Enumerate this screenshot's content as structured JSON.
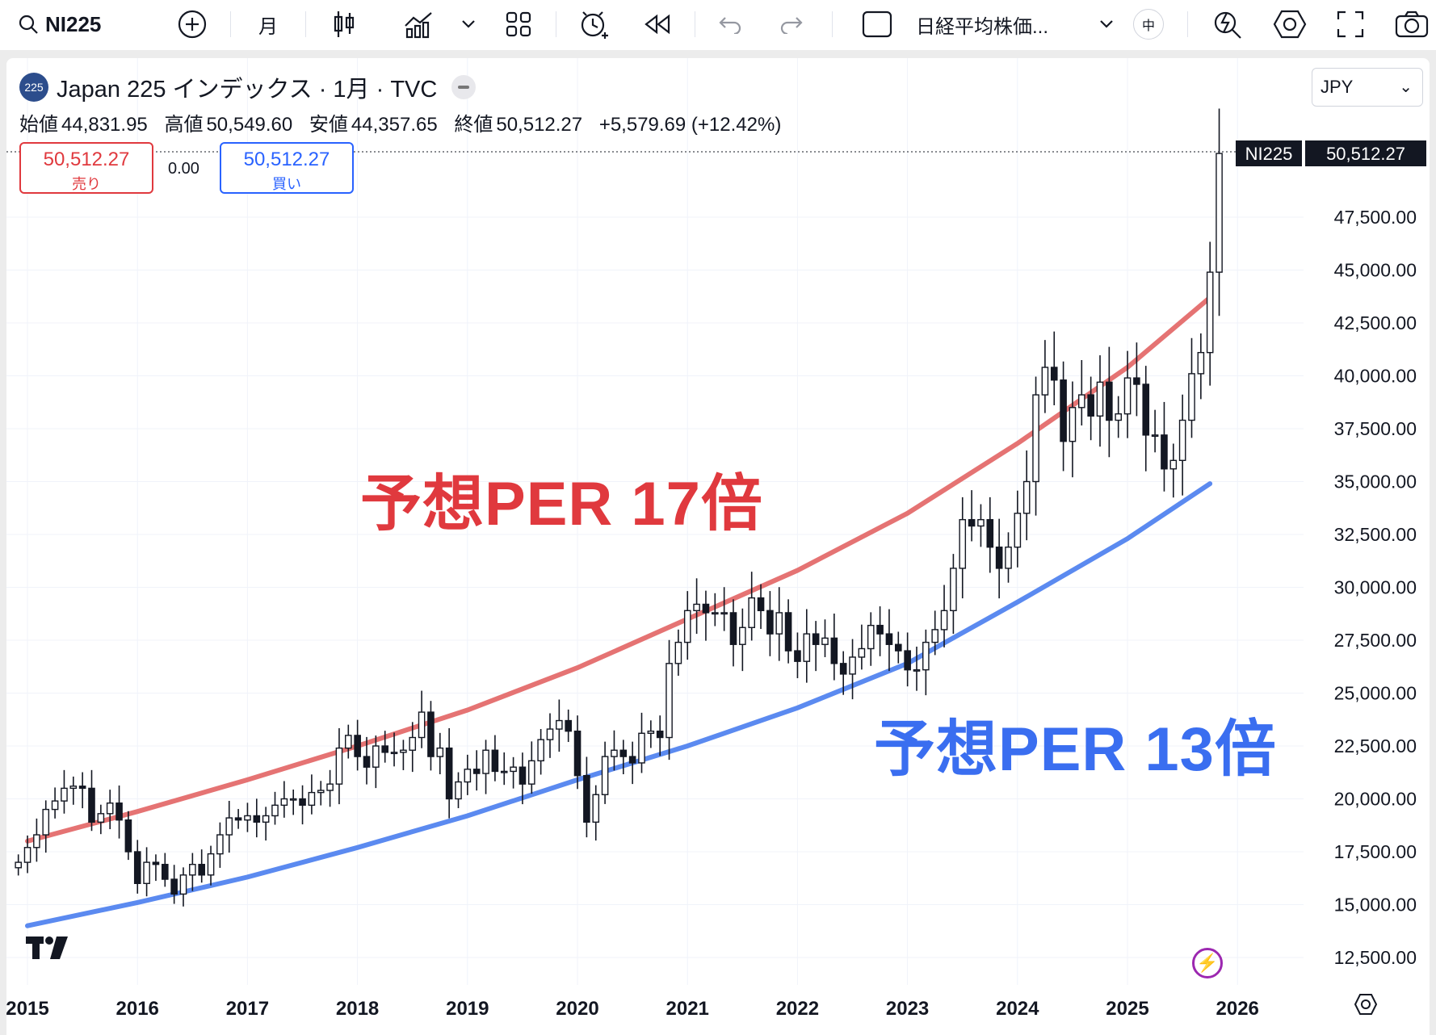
{
  "toolbar": {
    "symbol": "NI225",
    "interval": "月",
    "indicator_name": "日経平均株価...",
    "lang": "中"
  },
  "legend": {
    "badge": "225",
    "title": "Japan 225 インデックス · 1月 · TVC",
    "open_label": "始値",
    "open": "44,831.95",
    "high_label": "高値",
    "high": "50,549.60",
    "low_label": "安値",
    "low": "44,357.65",
    "close_label": "終値",
    "close": "50,512.27",
    "change": "+5,579.69 (+12.42%)"
  },
  "trade": {
    "sell_price": "50,512.27",
    "sell_label": "売り",
    "spread": "0.00",
    "buy_price": "50,512.27",
    "buy_label": "買い"
  },
  "currency": "JPY",
  "price_tag": {
    "symbol": "NI225",
    "price": "50,512.27"
  },
  "annotations": {
    "per17": "予想PER 17倍",
    "per13": "予想PER 13倍"
  },
  "colors": {
    "per17": "#e57373",
    "per13": "#5b8af0",
    "per17_text": "#e0393e",
    "per13_text": "#3a6ef0",
    "sell": "#e0393e",
    "buy": "#2962ff"
  },
  "chart_data": {
    "type": "candlestick",
    "y_ticks": [
      "12,500.00",
      "15,000.00",
      "17,500.00",
      "20,000.00",
      "22,500.00",
      "25,000.00",
      "27,500.00",
      "30,000.00",
      "32,500.00",
      "35,000.00",
      "37,500.00",
      "40,000.00",
      "42,500.00",
      "45,000.00",
      "47,500.00"
    ],
    "x_ticks": [
      "2015",
      "2016",
      "2017",
      "2018",
      "2019",
      "2020",
      "2021",
      "2022",
      "2023",
      "2024",
      "2025",
      "2026"
    ],
    "per17_curve": [
      [
        2015.0,
        18000
      ],
      [
        2016.0,
        19400
      ],
      [
        2017.0,
        20900
      ],
      [
        2018.0,
        22500
      ],
      [
        2019.0,
        24200
      ],
      [
        2020.0,
        26200
      ],
      [
        2021.0,
        28500
      ],
      [
        2022.0,
        30800
      ],
      [
        2023.0,
        33500
      ],
      [
        2024.0,
        36800
      ],
      [
        2025.0,
        40400
      ],
      [
        2025.75,
        43700
      ]
    ],
    "per13_curve": [
      [
        2015.0,
        14000
      ],
      [
        2016.0,
        15100
      ],
      [
        2017.0,
        16300
      ],
      [
        2018.0,
        17700
      ],
      [
        2019.0,
        19200
      ],
      [
        2020.0,
        20900
      ],
      [
        2021.0,
        22500
      ],
      [
        2022.0,
        24300
      ],
      [
        2023.0,
        26400
      ],
      [
        2024.0,
        29300
      ],
      [
        2025.0,
        32300
      ],
      [
        2025.75,
        34900
      ]
    ],
    "closes": [
      17000,
      17700,
      18300,
      19500,
      19900,
      20500,
      20600,
      20500,
      18900,
      19300,
      19800,
      19000,
      17500,
      16000,
      17000,
      16900,
      16200,
      15500,
      16400,
      16900,
      16400,
      17400,
      18300,
      19100,
      19000,
      19200,
      18900,
      19200,
      19700,
      20000,
      20000,
      19700,
      20300,
      20400,
      20700,
      22400,
      23000,
      22000,
      21500,
      22500,
      22200,
      22200,
      22300,
      22900,
      24100,
      22000,
      22400,
      20000,
      20800,
      21400,
      21200,
      22300,
      21300,
      21300,
      21500,
      20700,
      21800,
      22800,
      23300,
      23700,
      23200,
      21100,
      18900,
      20200,
      22000,
      22300,
      22000,
      21700,
      23100,
      23200,
      22900,
      26400,
      27400,
      28900,
      29200,
      28800,
      28800,
      28800,
      27300,
      28100,
      29500,
      28900,
      27800,
      28800,
      27000,
      26500,
      27800,
      27300,
      27600,
      26400,
      25900,
      26700,
      27100,
      28200,
      27800,
      27300,
      27000,
      26100,
      26100,
      27400,
      28000,
      28900,
      30900,
      33200,
      32900,
      33200,
      31900,
      30900,
      31900,
      33500,
      35000,
      39100,
      40400,
      39800,
      36900,
      38500,
      39100,
      38100,
      39700,
      37900,
      38200,
      39900,
      39600,
      37200,
      37200,
      35600,
      36000,
      37900,
      40100,
      41100,
      44900,
      50512
    ]
  }
}
